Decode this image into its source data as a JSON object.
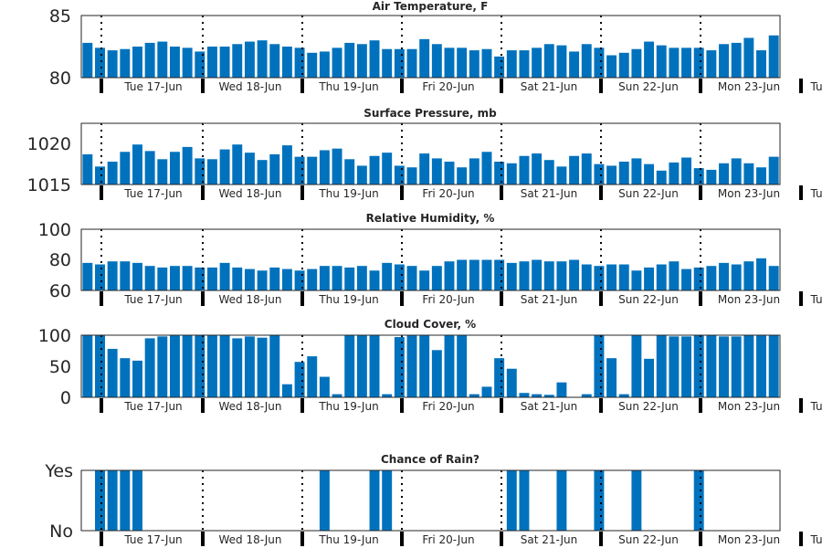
{
  "chart_data": [
    {
      "type": "bar",
      "title": "Air Temperature, F",
      "ylim": [
        80,
        85
      ],
      "yticks": [
        "80",
        "85"
      ],
      "color": "#0072BD",
      "values": [
        82.8,
        82.4,
        82.2,
        82.3,
        82.5,
        82.8,
        82.9,
        82.5,
        82.4,
        82.1,
        82.5,
        82.5,
        82.7,
        82.9,
        83.0,
        82.7,
        82.5,
        82.4,
        82.0,
        82.1,
        82.4,
        82.8,
        82.7,
        83.0,
        82.3,
        82.3,
        82.3,
        83.1,
        82.7,
        82.4,
        82.4,
        82.2,
        82.3,
        81.7,
        82.2,
        82.2,
        82.4,
        82.7,
        82.6,
        82.1,
        82.7,
        82.4,
        81.8,
        82.0,
        82.3,
        82.9,
        82.6,
        82.4,
        82.4,
        82.4,
        82.2,
        82.7,
        82.8,
        83.2,
        82.2,
        83.4
      ]
    },
    {
      "type": "bar",
      "title": "Surface Pressure, mb",
      "ylim": [
        1015,
        1022.5
      ],
      "yticks": [
        "1015",
        "1020"
      ],
      "color": "#0072BD",
      "values": [
        1018.7,
        1017.2,
        1017.8,
        1019.0,
        1019.9,
        1019.1,
        1018.1,
        1019.0,
        1019.6,
        1018.2,
        1018.1,
        1019.3,
        1019.9,
        1018.9,
        1018.0,
        1018.7,
        1019.8,
        1018.4,
        1018.4,
        1019.2,
        1019.4,
        1018.1,
        1017.3,
        1018.5,
        1018.9,
        1017.3,
        1017.1,
        1018.8,
        1018.2,
        1017.8,
        1017.1,
        1018.2,
        1019.0,
        1017.8,
        1017.6,
        1018.5,
        1018.8,
        1018.0,
        1017.2,
        1018.5,
        1018.8,
        1017.5,
        1017.3,
        1017.8,
        1018.2,
        1017.5,
        1016.7,
        1017.7,
        1018.3,
        1017.0,
        1016.8,
        1017.6,
        1018.2,
        1017.6,
        1017.1,
        1018.4
      ]
    },
    {
      "type": "bar",
      "title": "Relative Humidity, %",
      "ylim": [
        60,
        100
      ],
      "yticks": [
        "60",
        "80",
        "100"
      ],
      "color": "#0072BD",
      "values": [
        78,
        77,
        79,
        79,
        78,
        76,
        75,
        76,
        76,
        75,
        75,
        78,
        75,
        74,
        73,
        75,
        74,
        73,
        74,
        76,
        76,
        75,
        76,
        73,
        78,
        77,
        76,
        73,
        76,
        79,
        80,
        80,
        80,
        80,
        78,
        79,
        80,
        79,
        79,
        80,
        77,
        76,
        77,
        77,
        73,
        75,
        77,
        79,
        74,
        75,
        76,
        78,
        77,
        79,
        81,
        76
      ]
    },
    {
      "type": "bar",
      "title": "Cloud Cover, %",
      "ylim": [
        0,
        100
      ],
      "yticks": [
        "0",
        "50",
        "100"
      ],
      "color": "#0072BD",
      "values": [
        100,
        100,
        78,
        63,
        59,
        95,
        98,
        100,
        100,
        100,
        100,
        100,
        95,
        98,
        96,
        100,
        21,
        57,
        66,
        33,
        5,
        100,
        100,
        100,
        5,
        97,
        100,
        100,
        76,
        100,
        100,
        5,
        17,
        63,
        46,
        7,
        5,
        4,
        24,
        0,
        5,
        100,
        63,
        5,
        100,
        62,
        100,
        98,
        98,
        100,
        100,
        98,
        98,
        100,
        100,
        100
      ]
    },
    {
      "type": "bar",
      "title": "Chance of Rain?",
      "ylim": [
        0,
        1
      ],
      "yticks": [
        "No",
        "Yes"
      ],
      "color": "#0072BD",
      "values": [
        0,
        1,
        1,
        1,
        1,
        0,
        0,
        0,
        0,
        0,
        0,
        0,
        0,
        0,
        0,
        0,
        0,
        0,
        0,
        1,
        0,
        0,
        0,
        1,
        1,
        0,
        0,
        0,
        0,
        0,
        0,
        0,
        0,
        0,
        1,
        1,
        0,
        0,
        1,
        0,
        0,
        1,
        0,
        0,
        1,
        0,
        0,
        0,
        0,
        1,
        0,
        0,
        0,
        0,
        0,
        0
      ]
    }
  ],
  "days": [
    "Tue 17-Jun",
    "Wed 18-Jun",
    "Thu 19-Jun",
    "Fri 20-Jun",
    "Sat 21-Jun",
    "Sun 22-Jun",
    "Mon 23-Jun",
    "Tu"
  ]
}
